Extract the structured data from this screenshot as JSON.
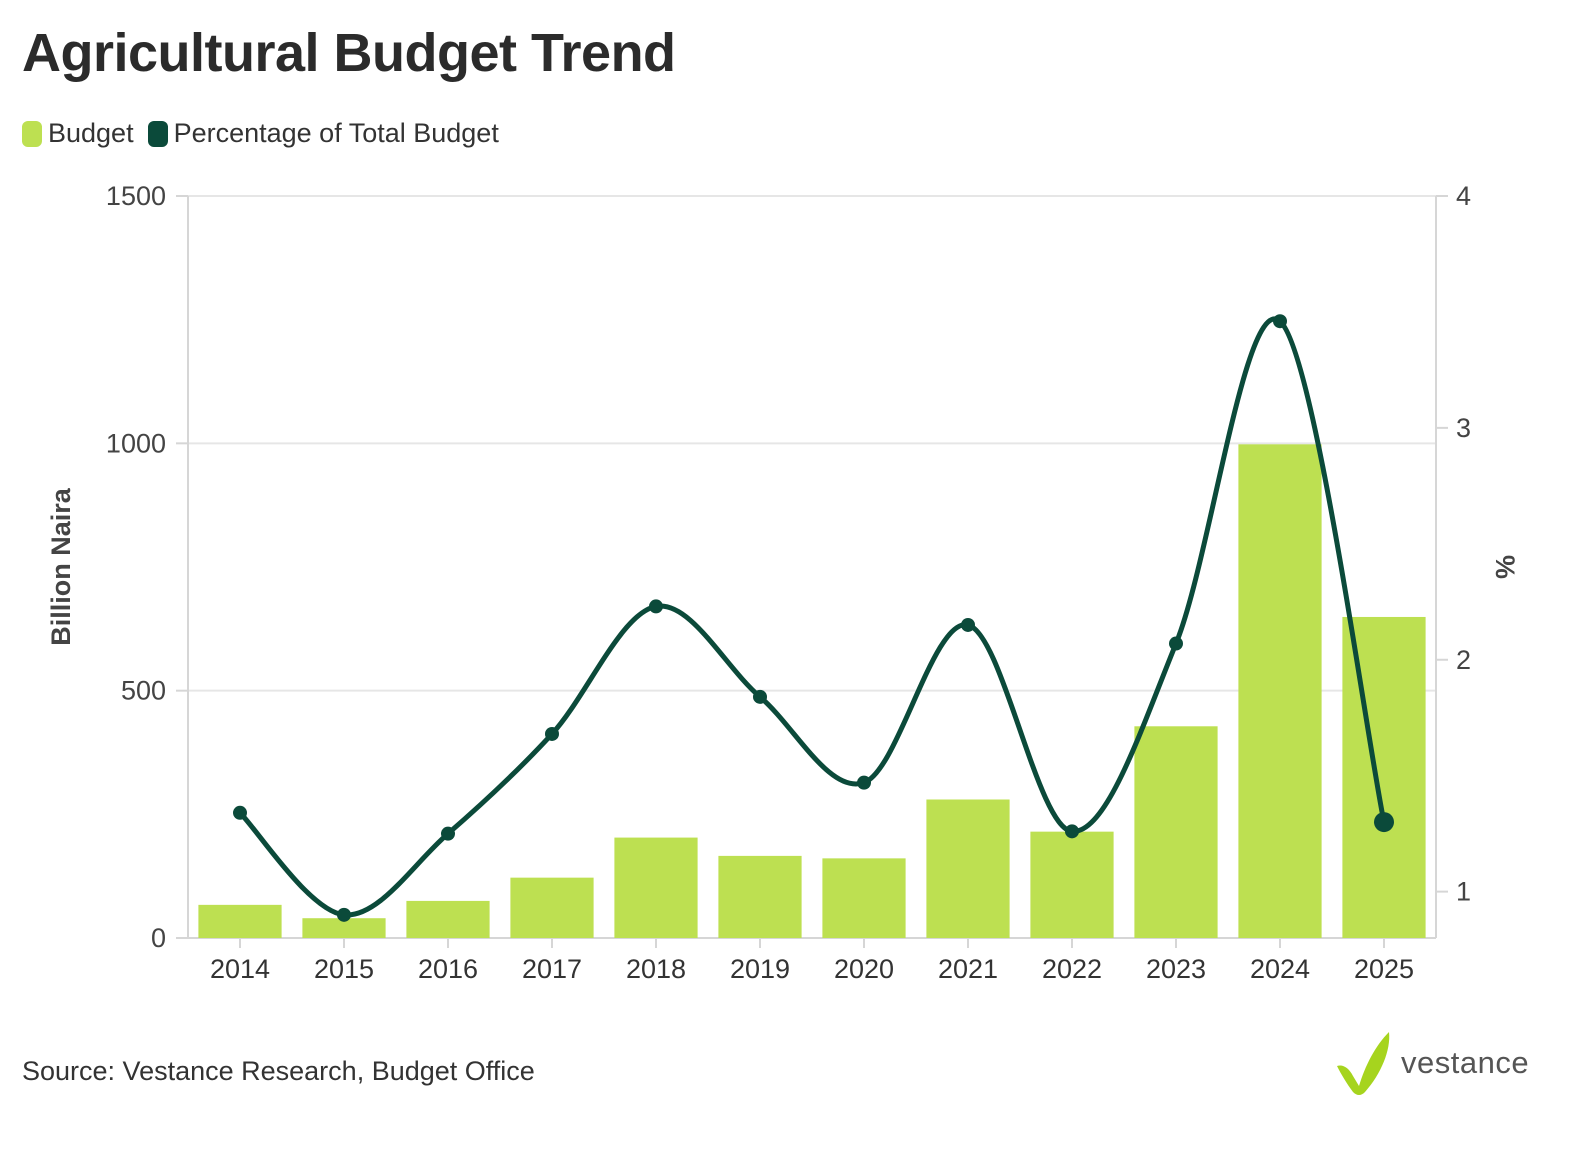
{
  "title": "Agricultural Budget Trend",
  "legend": [
    {
      "label": "Budget",
      "color": "#bde051"
    },
    {
      "label": "Percentage of Total Budget",
      "color": "#0b4a3a"
    }
  ],
  "source": "Source: Vestance Research, Budget Office",
  "brand": {
    "name": "vestance",
    "icon": "checkmark-logo-icon",
    "color": "#a6d41e"
  },
  "chart_data": {
    "type": "bar",
    "title": "Agricultural Budget Trend",
    "categories": [
      "2014",
      "2015",
      "2016",
      "2017",
      "2018",
      "2019",
      "2020",
      "2021",
      "2022",
      "2023",
      "2024",
      "2025"
    ],
    "series": [
      {
        "name": "Budget",
        "type": "bar",
        "axis": "left",
        "color": "#bde051",
        "values": [
          67,
          40,
          75,
          122,
          203,
          166,
          161,
          280,
          215,
          428,
          998,
          649
        ]
      },
      {
        "name": "Percentage of Total Budget",
        "type": "line",
        "axis": "right",
        "color": "#0b4a3a",
        "values": [
          1.34,
          0.9,
          1.25,
          1.68,
          2.23,
          1.84,
          1.47,
          2.15,
          1.26,
          2.07,
          3.46,
          1.3
        ]
      }
    ],
    "ylabel": "Billion Naira",
    "ylim": [
      0,
      1500
    ],
    "yticks": [
      0,
      500,
      1000,
      1500
    ],
    "y2label": "%",
    "y2lim": [
      0.8,
      4
    ],
    "y2ticks": [
      1,
      2,
      3,
      4
    ],
    "grid": true,
    "legend_position": "top-left"
  }
}
